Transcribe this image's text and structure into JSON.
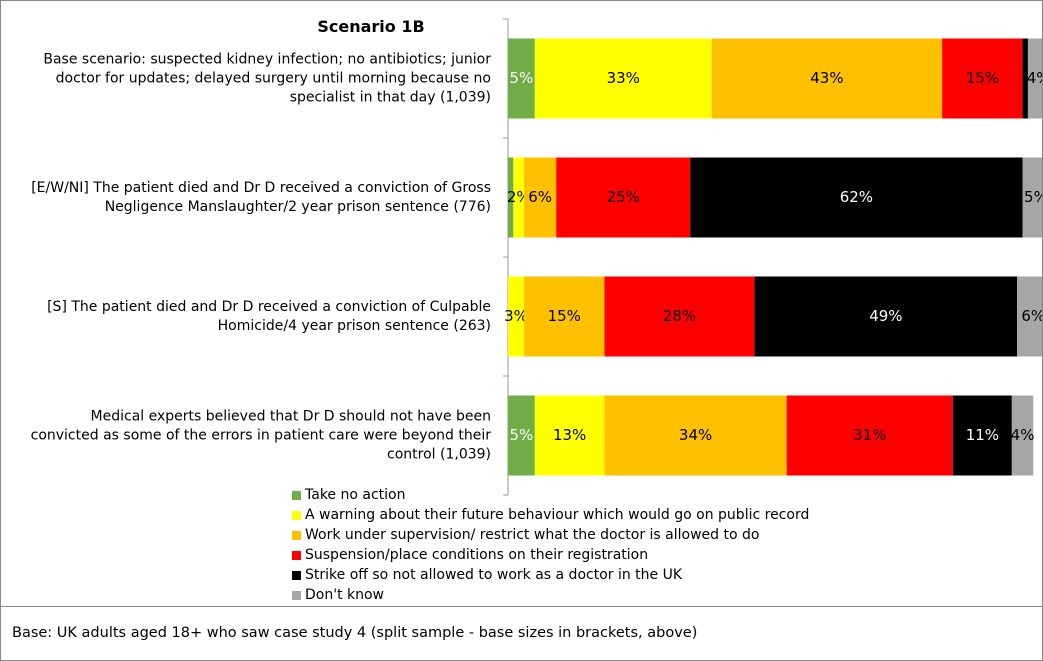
{
  "chart_data": {
    "type": "stacked-bar-horizontal",
    "title": "Scenario 1B",
    "categories": [
      "Base scenario: suspected kidney infection; no antibiotics; junior doctor for updates; delayed surgery until morning because no specialist in that day (1,039)",
      "[E/W/NI] The patient died and Dr D received a conviction of Gross Negligence Manslaughter/2 year prison sentence (776)",
      "[S] The patient died and Dr D received a conviction of Culpable Homicide/4 year prison sentence (263)",
      "Medical experts believed that Dr D should not have been convicted as some of the errors in patient care were beyond their control (1,039)"
    ],
    "xlim": [
      0,
      100
    ],
    "series": [
      {
        "name": "Take no action",
        "color": "#70ad47",
        "values": [
          5,
          1,
          0,
          5
        ],
        "value_labels": [
          "5%",
          null,
          null,
          "5%"
        ]
      },
      {
        "name": "A warning about their future behaviour which would go on public record",
        "color": "#ffff00",
        "values": [
          33,
          2,
          3,
          13
        ],
        "value_labels": [
          "33%",
          "2%",
          "3%",
          "13%"
        ]
      },
      {
        "name": "Work under supervision/ restrict what the doctor is allowed to do",
        "color": "#ffc000",
        "values": [
          43,
          6,
          15,
          34
        ],
        "value_labels": [
          "43%",
          "6%",
          "15%",
          "34%"
        ]
      },
      {
        "name": "Suspension/place conditions on their registration",
        "color": "#ff0000",
        "values": [
          15,
          25,
          28,
          31
        ],
        "value_labels": [
          "15%",
          "25%",
          "28%",
          "31%"
        ]
      },
      {
        "name": "Strike off so not allowed to work as a doctor in the UK",
        "color": "#000000",
        "values": [
          1,
          62,
          49,
          11
        ],
        "value_labels": [
          null,
          "62%",
          "49%",
          "11%"
        ]
      },
      {
        "name": "Don't know",
        "color": "#a6a6a6",
        "values": [
          4,
          5,
          6,
          4
        ],
        "value_labels": [
          "4%",
          "5%",
          "6%",
          "4%"
        ]
      }
    ],
    "footnote": "Base: UK adults aged 18+ who saw case study 4 (split sample - base sizes in brackets, above)"
  }
}
